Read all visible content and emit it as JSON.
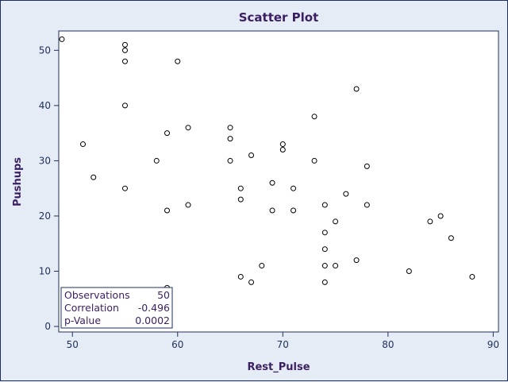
{
  "chart_data": {
    "type": "scatter",
    "title": "Scatter Plot",
    "xlabel": "Rest_Pulse",
    "ylabel": "Pushups",
    "xlim": [
      48.7,
      90.5
    ],
    "ylim": [
      -1,
      53.5
    ],
    "xticks": [
      50,
      60,
      70,
      80,
      90
    ],
    "yticks": [
      0,
      10,
      20,
      30,
      40,
      50
    ],
    "points": [
      {
        "x": 49,
        "y": 52
      },
      {
        "x": 51,
        "y": 33
      },
      {
        "x": 52,
        "y": 27
      },
      {
        "x": 55,
        "y": 51
      },
      {
        "x": 55,
        "y": 50
      },
      {
        "x": 55,
        "y": 48
      },
      {
        "x": 55,
        "y": 40
      },
      {
        "x": 55,
        "y": 25
      },
      {
        "x": 58,
        "y": 30
      },
      {
        "x": 59,
        "y": 35
      },
      {
        "x": 59,
        "y": 21
      },
      {
        "x": 59,
        "y": 7
      },
      {
        "x": 59,
        "y": 1
      },
      {
        "x": 60,
        "y": 48
      },
      {
        "x": 61,
        "y": 36
      },
      {
        "x": 61,
        "y": 22
      },
      {
        "x": 65,
        "y": 36
      },
      {
        "x": 65,
        "y": 34
      },
      {
        "x": 65,
        "y": 30
      },
      {
        "x": 66,
        "y": 25
      },
      {
        "x": 66,
        "y": 23
      },
      {
        "x": 66,
        "y": 9
      },
      {
        "x": 67,
        "y": 31
      },
      {
        "x": 67,
        "y": 8
      },
      {
        "x": 68,
        "y": 11
      },
      {
        "x": 69,
        "y": 26
      },
      {
        "x": 69,
        "y": 21
      },
      {
        "x": 70,
        "y": 33
      },
      {
        "x": 70,
        "y": 32
      },
      {
        "x": 71,
        "y": 25
      },
      {
        "x": 71,
        "y": 21
      },
      {
        "x": 73,
        "y": 38
      },
      {
        "x": 73,
        "y": 30
      },
      {
        "x": 74,
        "y": 22
      },
      {
        "x": 74,
        "y": 17
      },
      {
        "x": 74,
        "y": 14
      },
      {
        "x": 74,
        "y": 11
      },
      {
        "x": 74,
        "y": 8
      },
      {
        "x": 75,
        "y": 19
      },
      {
        "x": 75,
        "y": 11
      },
      {
        "x": 76,
        "y": 24
      },
      {
        "x": 77,
        "y": 43
      },
      {
        "x": 77,
        "y": 12
      },
      {
        "x": 78,
        "y": 29
      },
      {
        "x": 78,
        "y": 22
      },
      {
        "x": 82,
        "y": 10
      },
      {
        "x": 84,
        "y": 19
      },
      {
        "x": 85,
        "y": 20
      },
      {
        "x": 86,
        "y": 16
      },
      {
        "x": 88,
        "y": 9
      }
    ],
    "grid": false,
    "legend": "none"
  },
  "stats": {
    "rows": [
      {
        "label": "Observations",
        "value": "50"
      },
      {
        "label": "Correlation",
        "value": "-0.496"
      },
      {
        "label": "p-Value",
        "value": "0.0002"
      }
    ],
    "placement": "bottom-left"
  },
  "colors": {
    "background": "#e6ecf5",
    "plot_background": "#ffffff",
    "text": "#3a1f62",
    "axis": "#1f2f5c",
    "marker": "#000000"
  }
}
